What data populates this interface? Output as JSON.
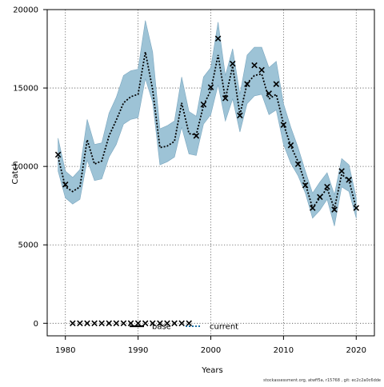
{
  "chart_data": {
    "type": "line",
    "xlabel": "Years",
    "ylabel": "Catch",
    "xlim": [
      1977.5,
      2022.5
    ],
    "ylim": [
      -800,
      20000
    ],
    "x_ticks": [
      1980,
      1990,
      2000,
      2010,
      2020
    ],
    "y_ticks": [
      0,
      5000,
      10000,
      15000,
      20000
    ],
    "grid": "dotted",
    "legend": {
      "position": "bottom-center",
      "entries": [
        "base",
        "current"
      ]
    },
    "series": [
      {
        "name": "base",
        "style": "black line with x markers",
        "x": [
          1979,
          1980,
          1981,
          1982,
          1983,
          1984,
          1985,
          1986,
          1987,
          1988,
          1989,
          1990,
          1991,
          1992,
          1993,
          1994,
          1995,
          1996,
          1997,
          1998,
          1999,
          2000,
          2001,
          2002,
          2003,
          2004,
          2005,
          2006,
          2007,
          2008,
          2009,
          2010,
          2011,
          2012,
          2013,
          2014,
          2015,
          2016,
          2017,
          2018,
          2019,
          2020
        ],
        "y": [
          10750,
          8850,
          0,
          0,
          0,
          0,
          0,
          0,
          0,
          0,
          0,
          0,
          0,
          0,
          0,
          0,
          0,
          0,
          0,
          11950,
          13950,
          15050,
          18150,
          14350,
          16550,
          13250,
          15250,
          16450,
          16150,
          14650,
          15250,
          12650,
          11350,
          10150,
          8800,
          7350,
          8050,
          8700,
          7250,
          9700,
          9150,
          7350
        ]
      },
      {
        "name": "current",
        "style": "dotted blue line with shaded uncertainty band",
        "x": [
          1979,
          1980,
          1981,
          1982,
          1983,
          1984,
          1985,
          1986,
          1987,
          1988,
          1989,
          1990,
          1991,
          1992,
          1993,
          1994,
          1995,
          1996,
          1997,
          1998,
          1999,
          2000,
          2001,
          2002,
          2003,
          2004,
          2005,
          2006,
          2007,
          2008,
          2009,
          2010,
          2011,
          2012,
          2013,
          2014,
          2015,
          2016,
          2017,
          2018,
          2019,
          2020
        ],
        "y": [
          10600,
          8700,
          8400,
          8700,
          11700,
          10150,
          10350,
          11950,
          12950,
          14050,
          14450,
          14600,
          17300,
          14900,
          11200,
          11300,
          11600,
          14050,
          12100,
          12000,
          13900,
          14850,
          17100,
          14300,
          16400,
          13300,
          15300,
          15800,
          15900,
          14300,
          14600,
          12700,
          11300,
          10300,
          8900,
          7350,
          8000,
          8600,
          7300,
          9500,
          9100,
          7350
        ],
        "lower": [
          9700,
          8000,
          7600,
          7900,
          10400,
          9100,
          9200,
          10600,
          11400,
          12700,
          13000,
          13100,
          15600,
          14100,
          10100,
          10300,
          10600,
          12500,
          10800,
          10700,
          12700,
          13300,
          15200,
          12900,
          14300,
          12200,
          14000,
          14500,
          14600,
          13300,
          13600,
          11400,
          10200,
          9400,
          8300,
          6700,
          7200,
          7900,
          6200,
          8700,
          8400,
          6700
        ],
        "upper": [
          11800,
          9700,
          9300,
          9800,
          13000,
          11400,
          11500,
          13400,
          14400,
          15800,
          16100,
          16200,
          19300,
          17300,
          12400,
          12600,
          12900,
          15700,
          13500,
          13200,
          15700,
          16300,
          19200,
          15800,
          17500,
          14600,
          17100,
          17600,
          17600,
          16300,
          16700,
          14000,
          12500,
          11200,
          9700,
          8300,
          9000,
          9600,
          8200,
          10500,
          10100,
          8000
        ]
      }
    ]
  },
  "footer": {
    "text": "stockassessment.org, atwff5a, r15768 , git: ec2c2a0c6dde"
  },
  "colors": {
    "band": "#9dc3d6",
    "band_edge": "#7aa6bf",
    "current_line": "#1f6fa3",
    "base": "#000000"
  }
}
